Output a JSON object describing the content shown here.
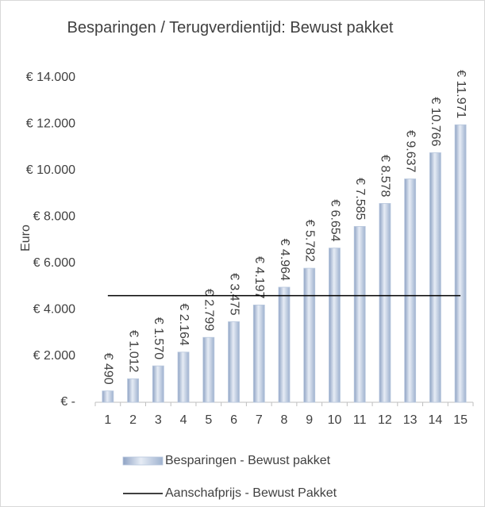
{
  "chart_data": {
    "type": "bar",
    "title": "Besparingen / Terugverdientijd: Bewust pakket",
    "y_axis_label": "Euro",
    "categories": [
      "1",
      "2",
      "3",
      "4",
      "5",
      "6",
      "7",
      "8",
      "9",
      "10",
      "11",
      "12",
      "13",
      "14",
      "15"
    ],
    "series": [
      {
        "name": "Besparingen - Bewust pakket",
        "type": "bar",
        "color": "#b9c8de",
        "values": [
          490,
          1012,
          1570,
          2164,
          2799,
          3475,
          4197,
          4964,
          5782,
          6654,
          7585,
          8578,
          9637,
          10766,
          11971
        ],
        "value_labels": [
          "€ 490",
          "€ 1.012",
          "€ 1.570",
          "€ 2.164",
          "€ 2.799",
          "€ 3.475",
          "€ 4.197",
          "€ 4.964",
          "€ 5.782",
          "€ 6.654",
          "€ 7.585",
          "€ 8.578",
          "€ 9.637",
          "€ 10.766",
          "€ 11.971"
        ]
      },
      {
        "name": "Aanschafprijs - Bewust Pakket",
        "type": "line",
        "color": "#000000",
        "values": [
          4600,
          4600,
          4600,
          4600,
          4600,
          4600,
          4600,
          4600,
          4600,
          4600,
          4600,
          4600,
          4600,
          4600,
          4600
        ]
      }
    ],
    "ylim": [
      0,
      14000
    ],
    "yticks": [
      {
        "value": 0,
        "label": "€ -"
      },
      {
        "value": 2000,
        "label": "€ 2.000"
      },
      {
        "value": 4000,
        "label": "€ 4.000"
      },
      {
        "value": 6000,
        "label": "€ 6.000"
      },
      {
        "value": 8000,
        "label": "€ 8.000"
      },
      {
        "value": 10000,
        "label": "€ 10.000"
      },
      {
        "value": 12000,
        "label": "€ 12.000"
      },
      {
        "value": 14000,
        "label": "€ 14.000"
      }
    ],
    "grid": false,
    "legend": "bottom"
  }
}
